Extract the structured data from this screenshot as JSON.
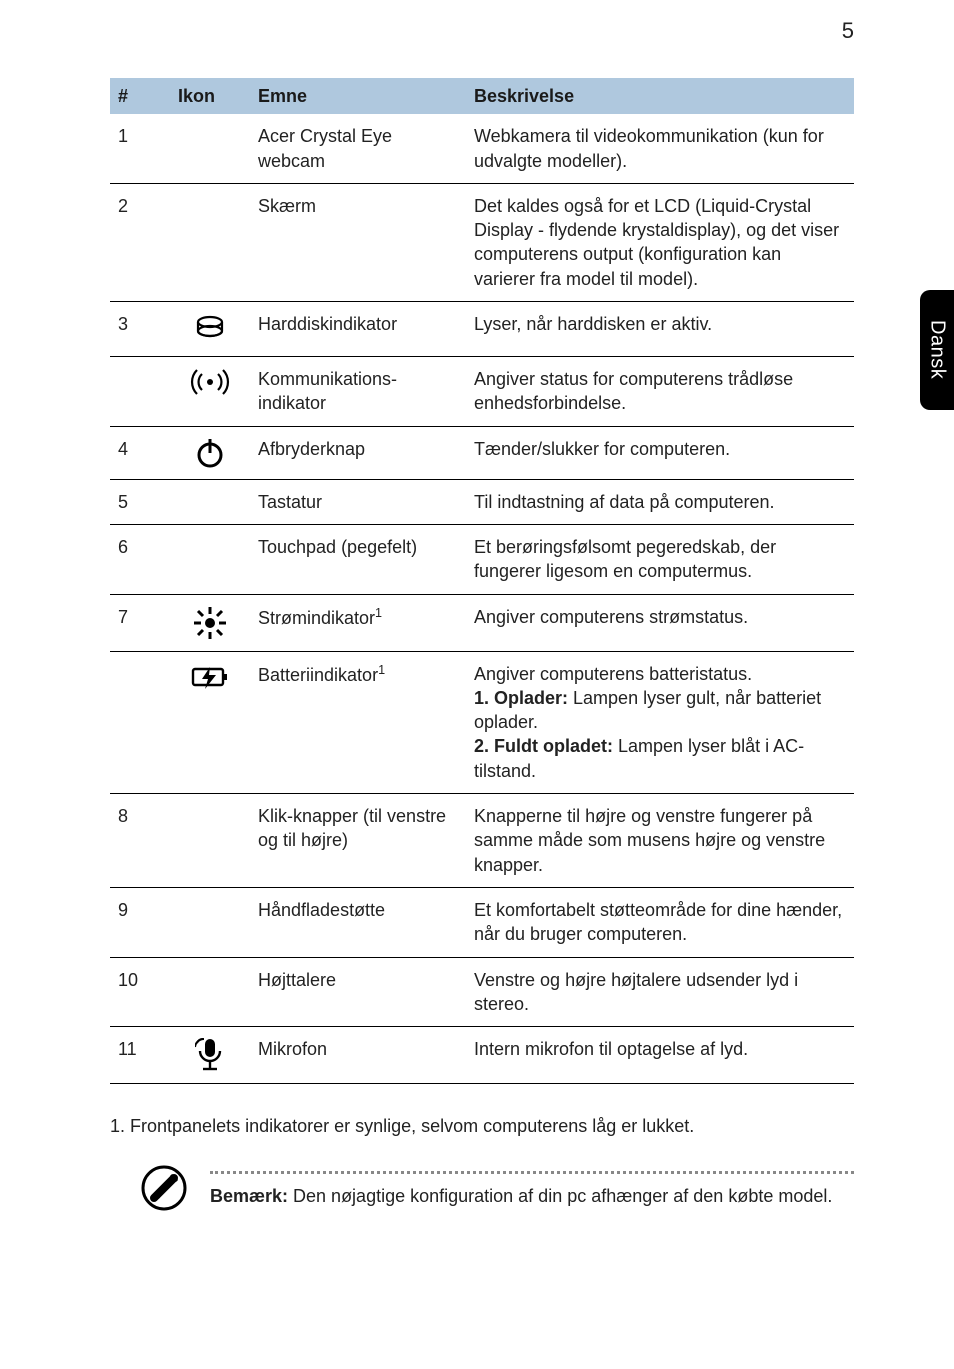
{
  "page_number": "5",
  "side_tab": "Dansk",
  "colors": {
    "header_bg": "#afc8de",
    "rule": "#000000",
    "side_tab_bg": "#000000",
    "side_tab_fg": "#ffffff",
    "note_dash": "#888888",
    "background": "#ffffff",
    "text": "#222222"
  },
  "table": {
    "headers": {
      "num": "#",
      "icon": "Ikon",
      "subject": "Emne",
      "desc": "Beskrivelse"
    }
  },
  "rows": {
    "r1": {
      "num": "1",
      "subject": "Acer Crystal Eye webcam",
      "desc": "Webkamera til videokommunikation (kun for udvalgte modeller)."
    },
    "r2": {
      "num": "2",
      "subject": "Skærm",
      "desc": "Det kaldes også for et LCD (Liquid-Crystal Display - flydende krystaldisplay), og det viser computerens output (konfiguration kan varierer fra model til model)."
    },
    "r3a": {
      "num": "3",
      "subject": "Harddiskindikator",
      "desc": "Lyser, når harddisken er aktiv."
    },
    "r3b": {
      "num": "",
      "subject": "Kommunikations-indikator",
      "desc": "Angiver status for computerens trådløse enhedsforbindelse."
    },
    "r4": {
      "num": "4",
      "subject": "Afbryderknap",
      "desc": "Tænder/slukker for computeren."
    },
    "r5": {
      "num": "5",
      "subject": "Tastatur",
      "desc": "Til indtastning af data på computeren."
    },
    "r6": {
      "num": "6",
      "subject": "Touchpad (pegefelt)",
      "desc": "Et berøringsfølsomt pegeredskab, der fungerer ligesom en computermus."
    },
    "r7a": {
      "num": "7",
      "subject_html": "Strømindikator<span class='sup'>1</span>",
      "desc": "Angiver computerens strømstatus."
    },
    "r7b": {
      "num": "",
      "subject_html": "Batteriindikator<span class='sup'>1</span>",
      "desc_html": "Angiver computerens batteristatus.<br><b>1. Oplader:</b> Lampen lyser gult, når batteriet oplader.<br><b>2. Fuldt opladet:</b> Lampen lyser blåt i AC-tilstand."
    },
    "r8": {
      "num": "8",
      "subject": "Klik-knapper (til venstre og til højre)",
      "desc": "Knapperne til højre og venstre fungerer på samme måde som musens højre og venstre knapper."
    },
    "r9": {
      "num": "9",
      "subject": "Håndfladestøtte",
      "desc": "Et komfortabelt støtteområde for dine hænder, når du bruger computeren."
    },
    "r10": {
      "num": "10",
      "subject": "Højttalere",
      "desc": "Venstre og højre højtalere udsender lyd i stereo."
    },
    "r11": {
      "num": "11",
      "subject": "Mikrofon",
      "desc": "Intern mikrofon til optagelse af lyd."
    }
  },
  "footnote": "1. Frontpanelets indikatorer er synlige, selvom computerens låg er lukket.",
  "note": {
    "label": "Bemærk:",
    "text": " Den nøjagtige konfiguration af din pc afhænger af den købte model."
  }
}
